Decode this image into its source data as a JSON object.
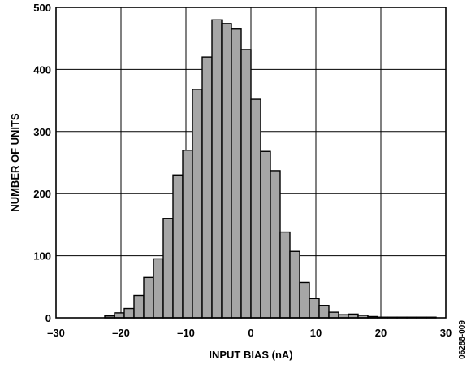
{
  "chart_data": {
    "type": "bar",
    "xlabel": "INPUT BIAS (nA)",
    "ylabel": "NUMBER OF UNITS",
    "xlim": [
      -30,
      30
    ],
    "ylim": [
      0,
      500
    ],
    "x_ticks": [
      -30,
      -20,
      -10,
      0,
      10,
      20,
      30
    ],
    "x_tick_labels": [
      "–30",
      "–20",
      "–10",
      "0",
      "10",
      "20",
      "30"
    ],
    "y_ticks": [
      0,
      100,
      200,
      300,
      400,
      500
    ],
    "y_tick_labels": [
      "0",
      "100",
      "200",
      "300",
      "400",
      "500"
    ],
    "grid": true,
    "bin_width": 1.5,
    "bins": [
      {
        "x": -21.75,
        "value": 3
      },
      {
        "x": -20.25,
        "value": 8
      },
      {
        "x": -18.75,
        "value": 15
      },
      {
        "x": -17.25,
        "value": 36
      },
      {
        "x": -15.75,
        "value": 65
      },
      {
        "x": -14.25,
        "value": 95
      },
      {
        "x": -12.75,
        "value": 160
      },
      {
        "x": -11.25,
        "value": 230
      },
      {
        "x": -9.75,
        "value": 270
      },
      {
        "x": -8.25,
        "value": 368
      },
      {
        "x": -6.75,
        "value": 420
      },
      {
        "x": -5.25,
        "value": 480
      },
      {
        "x": -3.75,
        "value": 474
      },
      {
        "x": -2.25,
        "value": 465
      },
      {
        "x": -0.75,
        "value": 432
      },
      {
        "x": 0.75,
        "value": 352
      },
      {
        "x": 2.25,
        "value": 268
      },
      {
        "x": 3.75,
        "value": 237
      },
      {
        "x": 5.25,
        "value": 138
      },
      {
        "x": 6.75,
        "value": 107
      },
      {
        "x": 8.25,
        "value": 57
      },
      {
        "x": 9.75,
        "value": 31
      },
      {
        "x": 11.25,
        "value": 20
      },
      {
        "x": 12.75,
        "value": 9
      },
      {
        "x": 14.25,
        "value": 5
      },
      {
        "x": 15.75,
        "value": 6
      },
      {
        "x": 17.25,
        "value": 4
      },
      {
        "x": 18.75,
        "value": 2
      },
      {
        "x": 20.25,
        "value": 1
      },
      {
        "x": 21.75,
        "value": 1
      },
      {
        "x": 23.25,
        "value": 1
      },
      {
        "x": 24.75,
        "value": 1
      },
      {
        "x": 26.25,
        "value": 1
      },
      {
        "x": 27.75,
        "value": 1
      }
    ],
    "bar_fill": "#a6a6a6",
    "bar_stroke": "#000000"
  },
  "figure_code": "06288-009"
}
